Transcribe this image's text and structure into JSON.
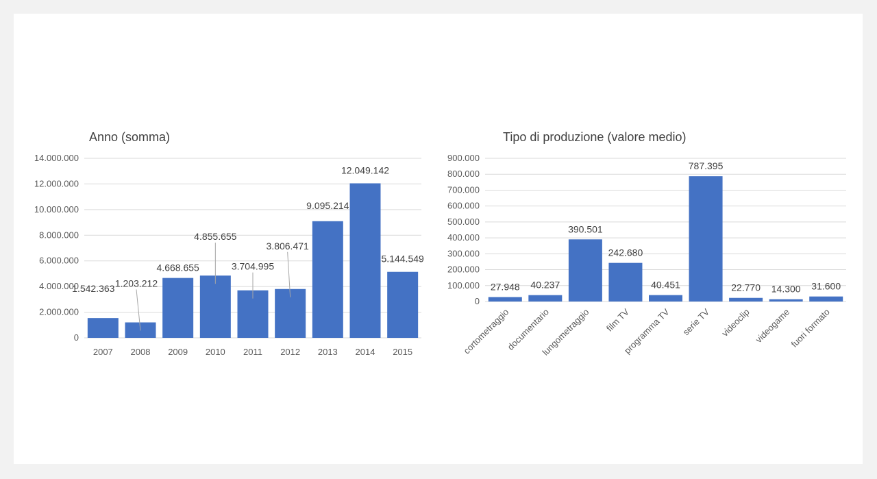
{
  "chart_data": [
    {
      "type": "bar",
      "title": "Anno (somma)",
      "categories": [
        "2007",
        "2008",
        "2009",
        "2010",
        "2011",
        "2012",
        "2013",
        "2014",
        "2015"
      ],
      "values": [
        1542363,
        1203212,
        4668655,
        4855655,
        3704995,
        3806471,
        9095214,
        12049142,
        5144549
      ],
      "data_labels": [
        "1.542.363",
        "1.203.212",
        "4.668.655",
        "4.855.655",
        "3.704.995",
        "3.806.471",
        "9.095.214",
        "12.049.142",
        "5.144.549"
      ],
      "yticks": [
        "0",
        "2.000.000",
        "4.000.000",
        "6.000.000",
        "8.000.000",
        "10.000.000",
        "12.000.000",
        "14.000.000"
      ],
      "ylim": [
        0,
        14000000
      ],
      "grid": true,
      "legend": "none",
      "bar_color": "#4472c4"
    },
    {
      "type": "bar",
      "title": "Tipo di produzione (valore medio)",
      "categories": [
        "cortometraggio",
        "documentario",
        "lungometraggio",
        "film TV",
        "programma TV",
        "serie TV",
        "videoclip",
        "videogame",
        "fuori formato"
      ],
      "values": [
        27948,
        40237,
        390501,
        242680,
        40451,
        787395,
        22770,
        14300,
        31600
      ],
      "data_labels": [
        "27.948",
        "40.237",
        "390.501",
        "242.680",
        "40.451",
        "787.395",
        "22.770",
        "14.300",
        "31.600"
      ],
      "yticks": [
        "0",
        "100.000",
        "200.000",
        "300.000",
        "400.000",
        "500.000",
        "600.000",
        "700.000",
        "800.000",
        "900.000"
      ],
      "ylim": [
        0,
        900000
      ],
      "grid": true,
      "legend": "none",
      "bar_color": "#4472c4"
    }
  ]
}
